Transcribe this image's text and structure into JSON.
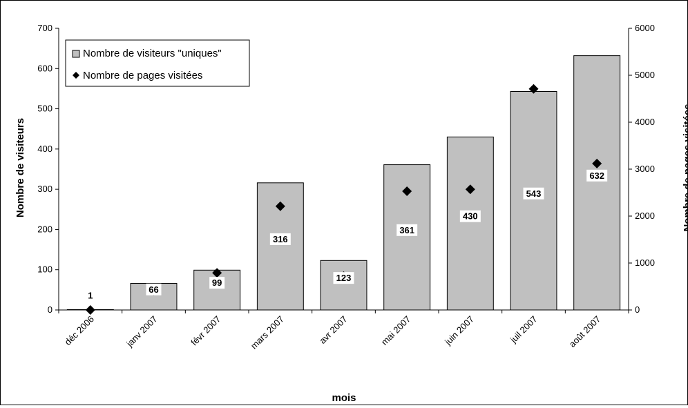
{
  "chart_data": {
    "type": "bar",
    "categories": [
      "déc 2006",
      "janv 2007",
      "févr 2007",
      "mars 2007",
      "avr 2007",
      "mai 2007",
      "juin 2007",
      "juil 2007",
      "août 2007"
    ],
    "series": [
      {
        "name": "Nombre de visiteurs \"uniques\"",
        "type": "bar",
        "axis": "left",
        "values": [
          1,
          66,
          99,
          316,
          123,
          361,
          430,
          543,
          632
        ],
        "color": "#c0c0c0",
        "data_labels": [
          "1",
          "66",
          "99",
          "316",
          "123",
          "361",
          "430",
          "543",
          "632"
        ]
      },
      {
        "name": "Nombre de pages visitées",
        "type": "scatter",
        "axis": "right",
        "marker": "diamond",
        "values": [
          0,
          410,
          790,
          2210,
          720,
          2530,
          2570,
          4710,
          3120
        ],
        "color": "#000000"
      }
    ],
    "xlabel": "mois",
    "ylabel": "Nombre de visiteurs",
    "y2label": "Nombre de pages visitées",
    "ylim": [
      0,
      700
    ],
    "y2lim": [
      0,
      6000
    ],
    "yticks": [
      "0",
      "100",
      "200",
      "300",
      "400",
      "500",
      "600",
      "700"
    ],
    "y2ticks": [
      "0",
      "1000",
      "2000",
      "3000",
      "4000",
      "5000",
      "6000"
    ],
    "grid": false,
    "legend_position": "top-left"
  }
}
